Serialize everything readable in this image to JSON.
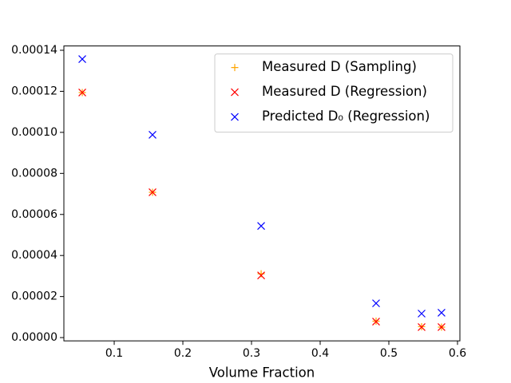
{
  "chart_data": {
    "type": "scatter",
    "xlabel": "Volume Fraction",
    "xlim": [
      0.0267,
      0.6035
    ],
    "ylim": [
      -1.6e-06,
      0.0001421
    ],
    "xticks": [
      0.1,
      0.2,
      0.3,
      0.4,
      0.5,
      0.6
    ],
    "yticks": [
      {
        "value": 0,
        "label": "0.00000"
      },
      {
        "value": 2e-05,
        "label": "0.00002"
      },
      {
        "value": 4e-05,
        "label": "0.00004"
      },
      {
        "value": 6e-05,
        "label": "0.00006"
      },
      {
        "value": 8e-05,
        "label": "0.00008"
      },
      {
        "value": 0.0001,
        "label": "0.00010"
      },
      {
        "value": 0.00012,
        "label": "0.00012"
      },
      {
        "value": 0.00014,
        "label": "0.00014"
      }
    ],
    "legend": "upper right",
    "series": [
      {
        "name": "Measured D (Sampling)",
        "color": "#ffa500",
        "marker": "+",
        "x": [
          0.0535,
          0.1558,
          0.314,
          0.4814,
          0.5477,
          0.5767
        ],
        "values": [
          0.0001194,
          7.08e-05,
          3.11e-05,
          8e-06,
          5.3e-06,
          5.1e-06
        ]
      },
      {
        "name": "Measured D (Regression)",
        "color": "#ff0000",
        "marker": "x",
        "x": [
          0.0535,
          0.1558,
          0.314,
          0.4814,
          0.5477,
          0.5767
        ],
        "values": [
          0.0001194,
          7.08e-05,
          3.03e-05,
          7.8e-06,
          5.1e-06,
          5.1e-06
        ]
      },
      {
        "name": "Predicted D₀ (Regression)",
        "color": "#0000ff",
        "marker": "x",
        "x": [
          0.0535,
          0.1558,
          0.314,
          0.4814,
          0.5477,
          0.5767
        ],
        "values": [
          0.0001357,
          9.88e-05,
          5.44e-05,
          1.67e-05,
          1.17e-05,
          1.21e-05
        ]
      }
    ]
  }
}
